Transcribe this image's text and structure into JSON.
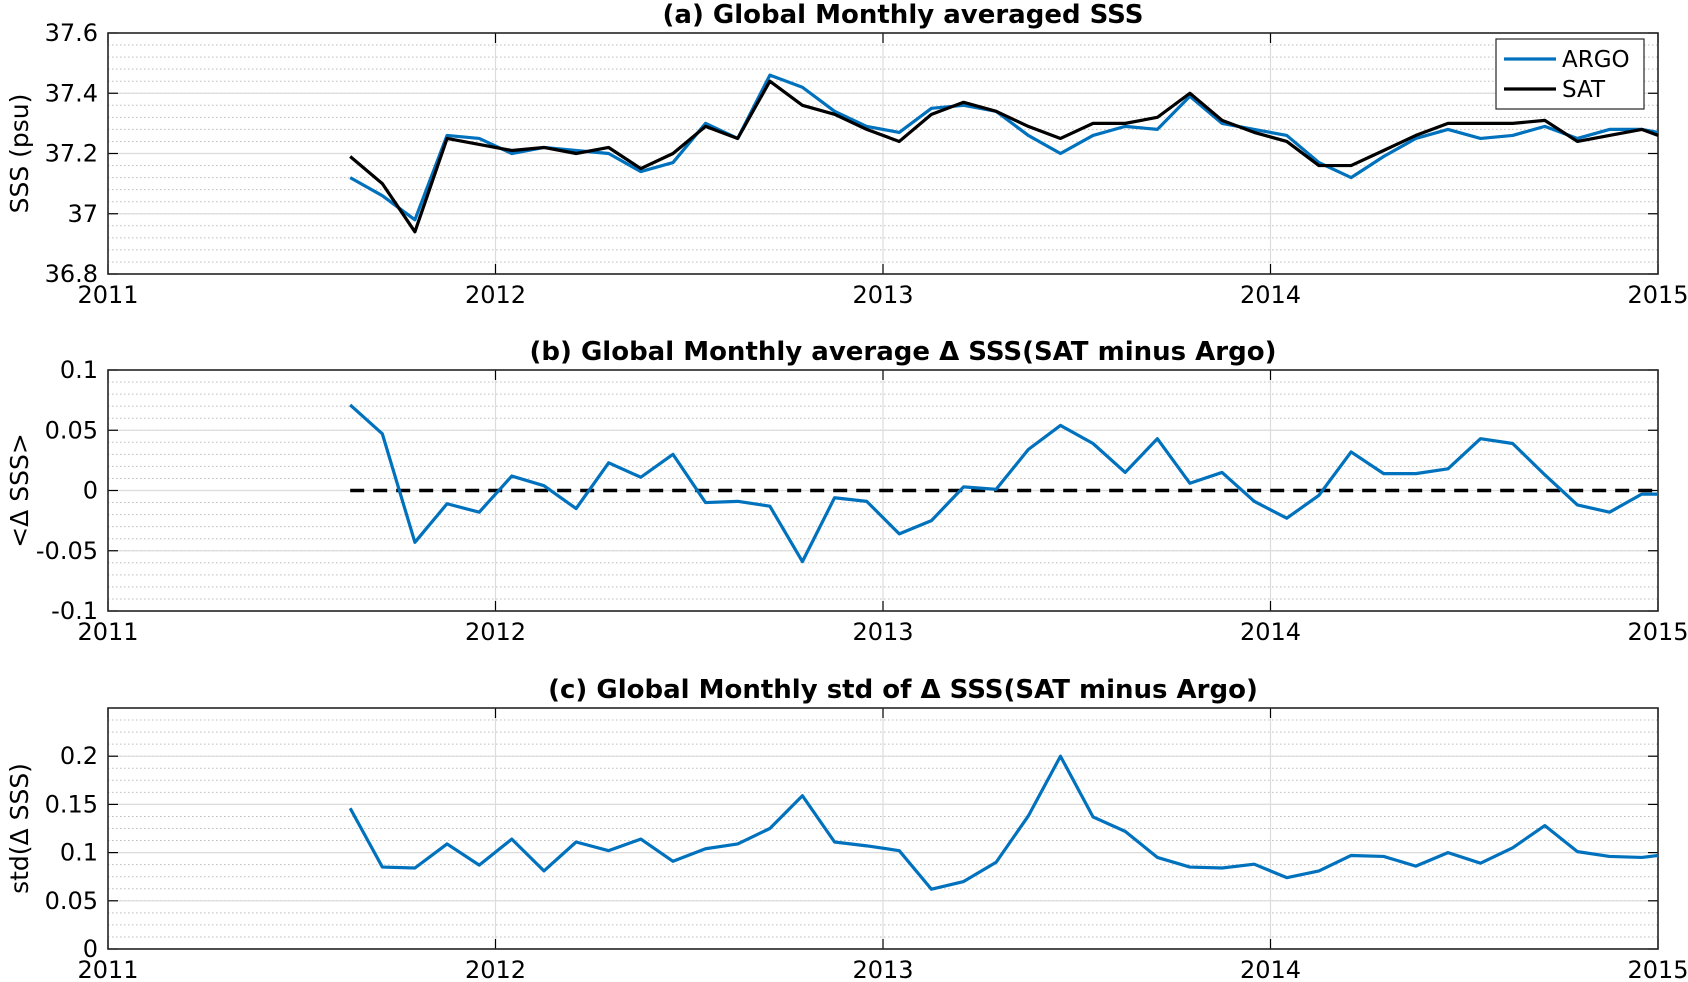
{
  "colors": {
    "argo": "#0072BD",
    "sat": "#000000",
    "zero_line": "#000000"
  },
  "chart_data": [
    {
      "type": "line",
      "title": "(a) Global Monthly averaged SSS",
      "xlabel": "",
      "ylabel": "SSS (psu)",
      "xlim": [
        2011,
        2015
      ],
      "ylim": [
        36.8,
        37.6
      ],
      "x_ticks": [
        "2011",
        "2012",
        "2013",
        "2014",
        "2015"
      ],
      "y_ticks": [
        "36.8",
        "37",
        "37.2",
        "37.4",
        "37.6"
      ],
      "grid": true,
      "legend_position": "top-right",
      "x": [
        2011.625,
        2011.708,
        2011.792,
        2011.875,
        2011.958,
        2012.042,
        2012.125,
        2012.208,
        2012.292,
        2012.375,
        2012.458,
        2012.542,
        2012.625,
        2012.708,
        2012.792,
        2012.875,
        2012.958,
        2013.042,
        2013.125,
        2013.208,
        2013.292,
        2013.375,
        2013.458,
        2013.542,
        2013.625,
        2013.708,
        2013.792,
        2013.875,
        2013.958,
        2014.042,
        2014.125,
        2014.208,
        2014.292,
        2014.375,
        2014.458,
        2014.542,
        2014.625,
        2014.708,
        2014.792,
        2014.875,
        2014.958,
        2015.0
      ],
      "series": [
        {
          "name": "ARGO",
          "color": "#0072BD",
          "values": [
            37.12,
            37.06,
            36.98,
            37.26,
            37.25,
            37.2,
            37.22,
            37.21,
            37.2,
            37.14,
            37.17,
            37.3,
            37.25,
            37.46,
            37.42,
            37.34,
            37.29,
            37.27,
            37.35,
            37.36,
            37.34,
            37.26,
            37.2,
            37.26,
            37.29,
            37.28,
            37.39,
            37.3,
            37.28,
            37.26,
            37.17,
            37.12,
            37.19,
            37.25,
            37.28,
            37.25,
            37.26,
            37.29,
            37.25,
            37.28,
            37.28,
            37.27
          ]
        },
        {
          "name": "SAT",
          "color": "#000000",
          "values": [
            37.19,
            37.1,
            36.94,
            37.25,
            37.23,
            37.21,
            37.22,
            37.2,
            37.22,
            37.15,
            37.2,
            37.29,
            37.25,
            37.44,
            37.36,
            37.33,
            37.28,
            37.24,
            37.33,
            37.37,
            37.34,
            37.29,
            37.25,
            37.3,
            37.3,
            37.32,
            37.4,
            37.31,
            37.27,
            37.24,
            37.16,
            37.16,
            37.21,
            37.26,
            37.3,
            37.3,
            37.3,
            37.31,
            37.24,
            37.26,
            37.28,
            37.26
          ]
        }
      ]
    },
    {
      "type": "line",
      "title": "(b) Global Monthly average Δ SSS(SAT minus Argo)",
      "xlabel": "",
      "ylabel": "<Δ SSS>",
      "xlim": [
        2011,
        2015
      ],
      "ylim": [
        -0.1,
        0.1
      ],
      "x_ticks": [
        "2011",
        "2012",
        "2013",
        "2014",
        "2015"
      ],
      "y_ticks": [
        "-0.1",
        "-0.05",
        "0",
        "0.05",
        "0.1"
      ],
      "grid": true,
      "reference_line": 0,
      "x": [
        2011.625,
        2011.708,
        2011.792,
        2011.875,
        2011.958,
        2012.042,
        2012.125,
        2012.208,
        2012.292,
        2012.375,
        2012.458,
        2012.542,
        2012.625,
        2012.708,
        2012.792,
        2012.875,
        2012.958,
        2013.042,
        2013.125,
        2013.208,
        2013.292,
        2013.375,
        2013.458,
        2013.542,
        2013.625,
        2013.708,
        2013.792,
        2013.875,
        2013.958,
        2014.042,
        2014.125,
        2014.208,
        2014.292,
        2014.375,
        2014.458,
        2014.542,
        2014.625,
        2014.708,
        2014.792,
        2014.875,
        2014.958,
        2015.0
      ],
      "series": [
        {
          "name": "",
          "color": "#0072BD",
          "values": [
            0.071,
            0.047,
            -0.043,
            -0.011,
            -0.018,
            0.012,
            0.004,
            -0.015,
            0.023,
            0.011,
            0.03,
            -0.01,
            -0.009,
            -0.013,
            -0.059,
            -0.006,
            -0.009,
            -0.036,
            -0.025,
            0.003,
            0.001,
            0.034,
            0.054,
            0.039,
            0.015,
            0.043,
            0.006,
            0.015,
            -0.009,
            -0.023,
            -0.004,
            0.032,
            0.014,
            0.014,
            0.018,
            0.043,
            0.039,
            0.013,
            -0.012,
            -0.018,
            -0.003,
            -0.003
          ]
        }
      ]
    },
    {
      "type": "line",
      "title": "(c) Global Monthly std of Δ SSS(SAT minus Argo)",
      "xlabel": "",
      "ylabel": "std(Δ SSS)",
      "xlim": [
        2011,
        2015
      ],
      "ylim": [
        0,
        0.25
      ],
      "x_ticks": [
        "2011",
        "2012",
        "2013",
        "2014",
        "2015"
      ],
      "y_ticks": [
        "0",
        "0.05",
        "0.1",
        "0.15",
        "0.2"
      ],
      "grid": true,
      "x": [
        2011.625,
        2011.708,
        2011.792,
        2011.875,
        2011.958,
        2012.042,
        2012.125,
        2012.208,
        2012.292,
        2012.375,
        2012.458,
        2012.542,
        2012.625,
        2012.708,
        2012.792,
        2012.875,
        2012.958,
        2013.042,
        2013.125,
        2013.208,
        2013.292,
        2013.375,
        2013.458,
        2013.542,
        2013.625,
        2013.708,
        2013.792,
        2013.875,
        2013.958,
        2014.042,
        2014.125,
        2014.208,
        2014.292,
        2014.375,
        2014.458,
        2014.542,
        2014.625,
        2014.708,
        2014.792,
        2014.875,
        2014.958,
        2015.0
      ],
      "series": [
        {
          "name": "",
          "color": "#0072BD",
          "values": [
            0.146,
            0.085,
            0.084,
            0.109,
            0.087,
            0.114,
            0.081,
            0.111,
            0.102,
            0.114,
            0.091,
            0.104,
            0.109,
            0.125,
            0.159,
            0.111,
            0.107,
            0.102,
            0.062,
            0.07,
            0.09,
            0.138,
            0.2,
            0.137,
            0.122,
            0.095,
            0.085,
            0.084,
            0.088,
            0.074,
            0.081,
            0.097,
            0.096,
            0.086,
            0.1,
            0.089,
            0.105,
            0.128,
            0.101,
            0.096,
            0.095,
            0.097
          ]
        }
      ]
    }
  ]
}
